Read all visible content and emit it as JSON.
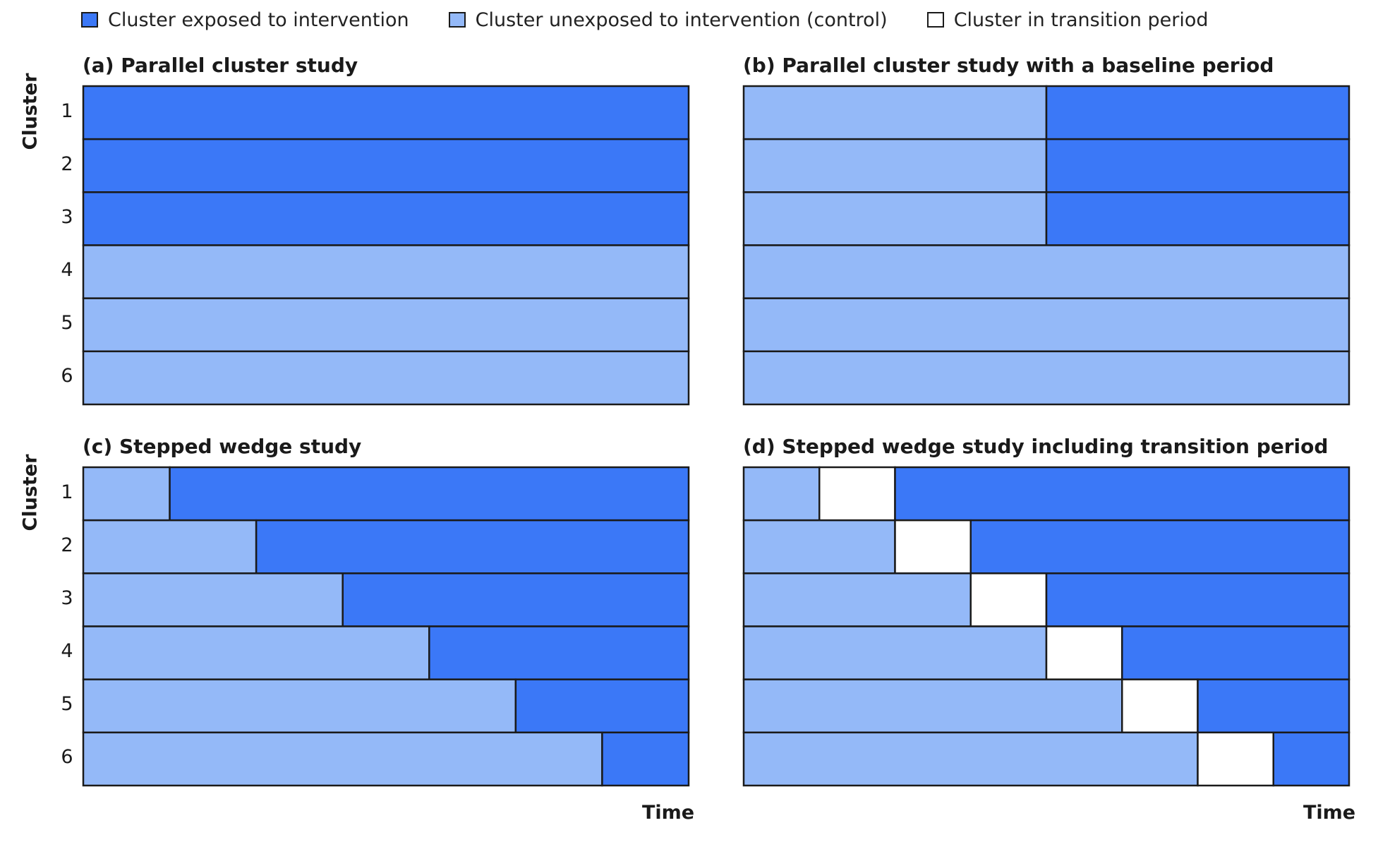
{
  "legend": {
    "items": [
      {
        "label": "Cluster exposed to intervention",
        "color": "#3b78f7"
      },
      {
        "label": "Cluster unexposed to intervention (control)",
        "color": "#94b9f8"
      },
      {
        "label": "Cluster in transition period",
        "color": "#ffffff"
      }
    ]
  },
  "y_axis_label": "Cluster",
  "x_axis_label": "Time",
  "cluster_labels": [
    "1",
    "2",
    "3",
    "4",
    "5",
    "6"
  ],
  "colors": {
    "exposed": "#3b78f7",
    "control": "#94b9f8",
    "transition": "#ffffff",
    "border": "#1a1a1a"
  },
  "panels": [
    {
      "title": "(a) Parallel cluster study",
      "rows": [
        [
          [
            "exposed",
            1
          ]
        ],
        [
          [
            "exposed",
            1
          ]
        ],
        [
          [
            "exposed",
            1
          ]
        ],
        [
          [
            "control",
            1
          ]
        ],
        [
          [
            "control",
            1
          ]
        ],
        [
          [
            "control",
            1
          ]
        ]
      ]
    },
    {
      "title": "(b) Parallel cluster study with a baseline period",
      "rows": [
        [
          [
            "control",
            0.5
          ],
          [
            "exposed",
            0.5
          ]
        ],
        [
          [
            "control",
            0.5
          ],
          [
            "exposed",
            0.5
          ]
        ],
        [
          [
            "control",
            0.5
          ],
          [
            "exposed",
            0.5
          ]
        ],
        [
          [
            "control",
            1
          ]
        ],
        [
          [
            "control",
            1
          ]
        ],
        [
          [
            "control",
            1
          ]
        ]
      ]
    },
    {
      "title": "(c) Stepped wedge study",
      "rows": [
        [
          [
            "control",
            1
          ],
          [
            "exposed",
            6
          ]
        ],
        [
          [
            "control",
            2
          ],
          [
            "exposed",
            5
          ]
        ],
        [
          [
            "control",
            3
          ],
          [
            "exposed",
            4
          ]
        ],
        [
          [
            "control",
            4
          ],
          [
            "exposed",
            3
          ]
        ],
        [
          [
            "control",
            5
          ],
          [
            "exposed",
            2
          ]
        ],
        [
          [
            "control",
            6
          ],
          [
            "exposed",
            1
          ]
        ]
      ]
    },
    {
      "title": "(d) Stepped wedge study including transition period",
      "rows": [
        [
          [
            "control",
            1
          ],
          [
            "transition",
            1
          ],
          [
            "exposed",
            6
          ]
        ],
        [
          [
            "control",
            2
          ],
          [
            "transition",
            1
          ],
          [
            "exposed",
            5
          ]
        ],
        [
          [
            "control",
            3
          ],
          [
            "transition",
            1
          ],
          [
            "exposed",
            4
          ]
        ],
        [
          [
            "control",
            4
          ],
          [
            "transition",
            1
          ],
          [
            "exposed",
            3
          ]
        ],
        [
          [
            "control",
            5
          ],
          [
            "transition",
            1
          ],
          [
            "exposed",
            2
          ]
        ],
        [
          [
            "control",
            6
          ],
          [
            "transition",
            1
          ],
          [
            "exposed",
            1
          ]
        ]
      ]
    }
  ]
}
